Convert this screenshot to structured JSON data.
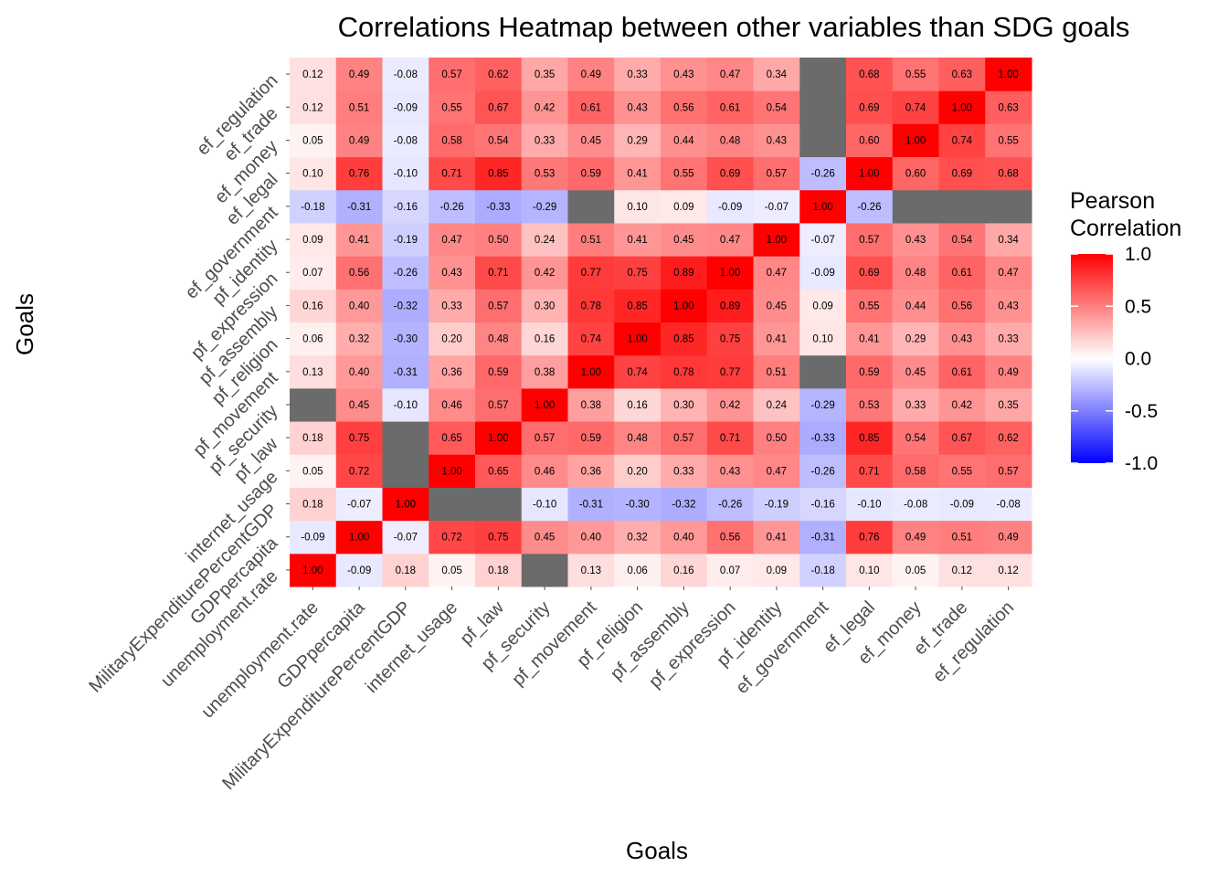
{
  "chart_data": {
    "type": "heatmap",
    "title": "Correlations Heatmap between other variables than SDG goals",
    "xlabel": "Goals",
    "ylabel": "Goals",
    "categories": [
      "unemployment.rate",
      "GDPpercapita",
      "MilitaryExpenditurePercentGDP",
      "internet_usage",
      "pf_law",
      "pf_security",
      "pf_movement",
      "pf_religion",
      "pf_assembly",
      "pf_expression",
      "pf_identity",
      "ef_government",
      "ef_legal",
      "ef_money",
      "ef_trade",
      "ef_regulation"
    ],
    "matrix": [
      [
        1.0,
        -0.09,
        0.18,
        0.05,
        0.18,
        null,
        0.13,
        0.06,
        0.16,
        0.07,
        0.09,
        -0.18,
        0.1,
        0.05,
        0.12,
        0.12
      ],
      [
        -0.09,
        1.0,
        -0.07,
        0.72,
        0.75,
        0.45,
        0.4,
        0.32,
        0.4,
        0.56,
        0.41,
        -0.31,
        0.76,
        0.49,
        0.51,
        0.49
      ],
      [
        0.18,
        -0.07,
        1.0,
        null,
        null,
        -0.1,
        -0.31,
        -0.3,
        -0.32,
        -0.26,
        -0.19,
        -0.16,
        -0.1,
        -0.08,
        -0.09,
        -0.08
      ],
      [
        0.05,
        0.72,
        null,
        1.0,
        0.65,
        0.46,
        0.36,
        0.2,
        0.33,
        0.43,
        0.47,
        -0.26,
        0.71,
        0.58,
        0.55,
        0.57
      ],
      [
        0.18,
        0.75,
        null,
        0.65,
        1.0,
        0.57,
        0.59,
        0.48,
        0.57,
        0.71,
        0.5,
        -0.33,
        0.85,
        0.54,
        0.67,
        0.62
      ],
      [
        null,
        0.45,
        -0.1,
        0.46,
        0.57,
        1.0,
        0.38,
        0.16,
        0.3,
        0.42,
        0.24,
        -0.29,
        0.53,
        0.33,
        0.42,
        0.35
      ],
      [
        0.13,
        0.4,
        -0.31,
        0.36,
        0.59,
        0.38,
        1.0,
        0.74,
        0.78,
        0.77,
        0.51,
        null,
        0.59,
        0.45,
        0.61,
        0.49
      ],
      [
        0.06,
        0.32,
        -0.3,
        0.2,
        0.48,
        0.16,
        0.74,
        1.0,
        0.85,
        0.75,
        0.41,
        0.1,
        0.41,
        0.29,
        0.43,
        0.33
      ],
      [
        0.16,
        0.4,
        -0.32,
        0.33,
        0.57,
        0.3,
        0.78,
        0.85,
        1.0,
        0.89,
        0.45,
        0.09,
        0.55,
        0.44,
        0.56,
        0.43
      ],
      [
        0.07,
        0.56,
        -0.26,
        0.43,
        0.71,
        0.42,
        0.77,
        0.75,
        0.89,
        1.0,
        0.47,
        -0.09,
        0.69,
        0.48,
        0.61,
        0.47
      ],
      [
        0.09,
        0.41,
        -0.19,
        0.47,
        0.5,
        0.24,
        0.51,
        0.41,
        0.45,
        0.47,
        1.0,
        -0.07,
        0.57,
        0.43,
        0.54,
        0.34
      ],
      [
        -0.18,
        -0.31,
        -0.16,
        -0.26,
        -0.33,
        -0.29,
        null,
        0.1,
        0.09,
        -0.09,
        -0.07,
        1.0,
        -0.26,
        null,
        null,
        null
      ],
      [
        0.1,
        0.76,
        -0.1,
        0.71,
        0.85,
        0.53,
        0.59,
        0.41,
        0.55,
        0.69,
        0.57,
        -0.26,
        1.0,
        0.6,
        0.69,
        0.68
      ],
      [
        0.05,
        0.49,
        -0.08,
        0.58,
        0.54,
        0.33,
        0.45,
        0.29,
        0.44,
        0.48,
        0.43,
        null,
        0.6,
        1.0,
        0.74,
        0.55
      ],
      [
        0.12,
        0.51,
        -0.09,
        0.55,
        0.67,
        0.42,
        0.61,
        0.43,
        0.56,
        0.61,
        0.54,
        null,
        0.69,
        0.74,
        1.0,
        0.63
      ],
      [
        0.12,
        0.49,
        -0.08,
        0.57,
        0.62,
        0.35,
        0.49,
        0.33,
        0.43,
        0.47,
        0.34,
        null,
        0.68,
        0.55,
        0.63,
        1.0
      ]
    ],
    "value_range": [
      -1,
      1
    ],
    "missing_color": "#6b6b6b",
    "color_scale": {
      "low": "#0000ff",
      "mid": "#ffffff",
      "high": "#ff0000"
    },
    "legend": {
      "title_line1": "Pearson",
      "title_line2": "Correlation",
      "placement": "right",
      "ticks": [
        1.0,
        0.5,
        0.0,
        -0.5,
        -1.0
      ]
    },
    "grid": true
  }
}
